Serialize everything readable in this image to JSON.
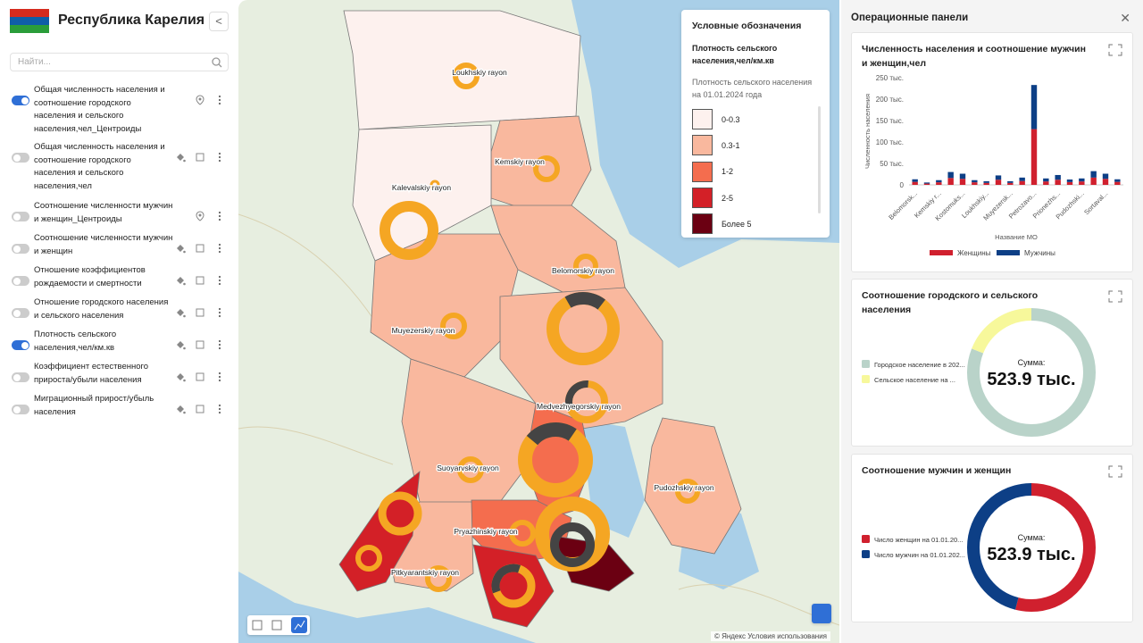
{
  "sidebar": {
    "title": "Республика Карелия",
    "search_placeholder": "Найти...",
    "layers": [
      {
        "label": "Общая численность населения и соотношение городского населения и сельского населения,чел_Центроиды",
        "enabled": true
      },
      {
        "label": "Общая численность населения и соотношение городского населения и сельского населения,чел",
        "enabled": false
      },
      {
        "label": "Соотношение численности мужчин и женщин_Центроиды",
        "enabled": false
      },
      {
        "label": "Соотношение численности мужчин и женщин",
        "enabled": false
      },
      {
        "label": "Отношение коэффициентов рождаемости и смертности",
        "enabled": false
      },
      {
        "label": "Отношение городского населения и сельского населения",
        "enabled": false
      },
      {
        "label": "Плотность сельского населения,чел/км.кв",
        "enabled": true
      },
      {
        "label": "Коэффициент естественного прироста/убыли населения",
        "enabled": false
      },
      {
        "label": "Миграционный прирост/убыль населения",
        "enabled": false
      }
    ]
  },
  "map": {
    "labels": [
      "Loukhskiy rayon",
      "Kalevalskiy rayon",
      "Kemskiy rayon",
      "Belomorskiy rayon",
      "Muyezerskiy rayon",
      "Medvezhyegorskiy rayon",
      "Suoyarvskiy rayon",
      "Pudozhskiy rayon",
      "Pryazhinskiy rayon",
      "Pitkyarantskiy rayon"
    ],
    "attribution": "© Яндекс Условия использования"
  },
  "legend": {
    "title": "Условные обозначения",
    "layer": "Плотность сельского населения,чел/км.кв",
    "subtitle": "Плотность сельского населения на 01.01.2024 года",
    "items": [
      {
        "label": "0-0.3",
        "color": "#fdf1ee"
      },
      {
        "label": "0.3-1",
        "color": "#f9b89e"
      },
      {
        "label": "1-2",
        "color": "#f46d4e"
      },
      {
        "label": "2-5",
        "color": "#d32027"
      },
      {
        "label": "Более 5",
        "color": "#6b0012"
      }
    ]
  },
  "panels": {
    "title": "Операционные панели",
    "charts": [
      {
        "type": "bar",
        "stacked": true,
        "title": "Численность населения и соотношение мужчин и женщин,чел",
        "x_label": "Название МО",
        "y_label": "Численность населения",
        "categories": [
          "Belomorsk...",
          null,
          "Kemskiy r...",
          null,
          "Kostomuks...",
          null,
          "Loukhskiy...",
          null,
          "Muyezersk...",
          null,
          "Petrozavo...",
          null,
          "Prionezhs...",
          null,
          "Pudozhski...",
          null,
          "Sortaval...",
          null
        ],
        "series": [
          {
            "name": "Женщины",
            "color": "#d0202e",
            "values": [
              7000,
              3000,
              6000,
              16000,
              14000,
              6000,
              4500,
              12000,
              4500,
              9000,
              130000,
              8000,
              12000,
              6500,
              8000,
              17000,
              14000,
              7000
            ]
          },
          {
            "name": "Мужчины",
            "color": "#0d3f86",
            "values": [
              6000,
              2500,
              5000,
              14000,
              12000,
              5000,
              4000,
              10000,
              4000,
              8000,
              103000,
              7000,
              11000,
              6000,
              7000,
              15000,
              12000,
              6000
            ]
          }
        ],
        "ylim": [
          0,
          250000
        ],
        "yticks": [
          0,
          {
            "value": 50000,
            "label": "50 тыс."
          },
          {
            "value": 100000,
            "label": "100 тыс."
          },
          {
            "value": 150000,
            "label": "150 тыс."
          },
          {
            "value": 200000,
            "label": "200 тыс."
          },
          {
            "value": 250000,
            "label": "250 тыс."
          }
        ],
        "grid": false
      },
      {
        "type": "donut",
        "title": "Соотношение городского и сельского населения",
        "categories": [
          "Городское население в 202...",
          "Сельское население на ..."
        ],
        "colors": [
          "#b9d3c9",
          "#f7f89b"
        ],
        "values": [
          424400,
          99500
        ],
        "center_label": "Сумма:",
        "total_label": "523.9 тыс."
      },
      {
        "type": "donut",
        "title": "Соотношение мужчин и женщин",
        "categories": [
          "Число женщин на 01.01.20...",
          "Число мужчин на 01.01.202..."
        ],
        "colors": [
          "#d0202e",
          "#0d3f86"
        ],
        "values": [
          282900,
          241000
        ],
        "center_label": "Сумма:",
        "total_label": "523.9 тыс."
      }
    ]
  }
}
